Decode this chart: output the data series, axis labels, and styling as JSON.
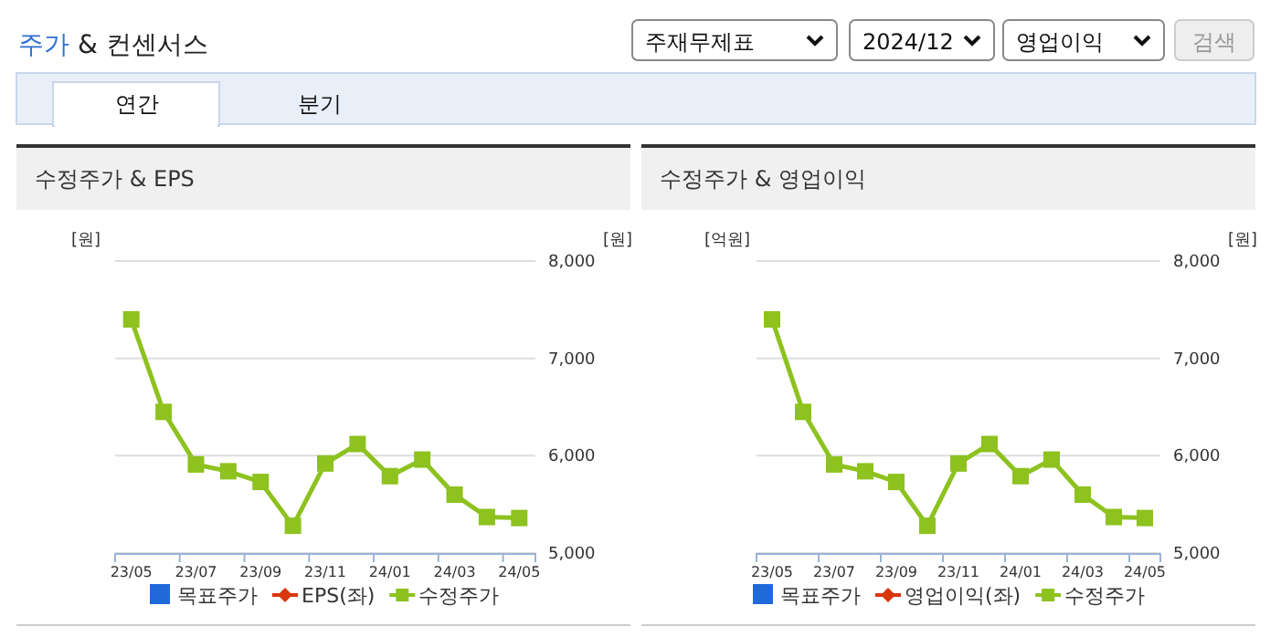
{
  "chart_data": [
    {
      "type": "line",
      "title": "수정주가 & EPS",
      "ylabel": "[원]",
      "y2label": "[원]",
      "annotations": [
        "주가 & 컨센서스",
        "주재무제표",
        "2024/12",
        "영업이익",
        "검색",
        "연간",
        "분기"
      ],
      "categories": [
        "23/05",
        null,
        "23/07",
        null,
        "23/09",
        null,
        "23/11",
        null,
        "24/01",
        null,
        "24/03",
        null,
        "24/05"
      ],
      "series": [
        {
          "name": "목표주가",
          "color": "#1f6ad8",
          "marker": "square",
          "values": [
            null,
            null,
            null,
            null,
            null,
            null,
            null,
            null,
            null,
            null,
            null,
            null,
            null
          ]
        },
        {
          "name": "EPS(좌)",
          "color": "#d9360b",
          "marker": "diamond",
          "values": [
            null,
            null,
            null,
            null,
            null,
            null,
            null,
            null,
            null,
            null,
            null,
            null,
            null
          ]
        },
        {
          "name": "수정주가",
          "color": "#8dc21f",
          "marker": "square",
          "axis": "y2",
          "values": [
            7400,
            6450,
            5910,
            5840,
            5730,
            5280,
            5920,
            6120,
            5790,
            5960,
            5600,
            5370,
            5360
          ]
        }
      ],
      "y2lim": [
        5000,
        8000
      ],
      "y2ticks": [
        {
          "value": 5000,
          "label": "5,000"
        },
        {
          "value": 6000,
          "label": "6,000"
        },
        {
          "value": 7000,
          "label": "7,000"
        },
        {
          "value": 8000,
          "label": "8,000"
        }
      ],
      "grid": "y",
      "legend": "bottom"
    },
    {
      "type": "line",
      "title": "수정주가 & 영업이익",
      "ylabel": "[억원]",
      "y2label": "[원]",
      "categories": [
        "23/05",
        null,
        "23/07",
        null,
        "23/09",
        null,
        "23/11",
        null,
        "24/01",
        null,
        "24/03",
        null,
        "24/05"
      ],
      "series": [
        {
          "name": "목표주가",
          "color": "#1f6ad8",
          "marker": "square",
          "values": [
            null,
            null,
            null,
            null,
            null,
            null,
            null,
            null,
            null,
            null,
            null,
            null,
            null
          ]
        },
        {
          "name": "영업이익(좌)",
          "color": "#d9360b",
          "marker": "diamond",
          "values": [
            null,
            null,
            null,
            null,
            null,
            null,
            null,
            null,
            null,
            null,
            null,
            null,
            null
          ]
        },
        {
          "name": "수정주가",
          "color": "#8dc21f",
          "marker": "square",
          "axis": "y2",
          "values": [
            7400,
            6450,
            5910,
            5840,
            5730,
            5280,
            5920,
            6120,
            5790,
            5960,
            5600,
            5370,
            5360
          ]
        }
      ],
      "y2lim": [
        5000,
        8000
      ],
      "y2ticks": [
        {
          "value": 5000,
          "label": "5,000"
        },
        {
          "value": 6000,
          "label": "6,000"
        },
        {
          "value": 7000,
          "label": "7,000"
        },
        {
          "value": 8000,
          "label": "8,000"
        }
      ],
      "grid": "y",
      "legend": "bottom"
    }
  ]
}
